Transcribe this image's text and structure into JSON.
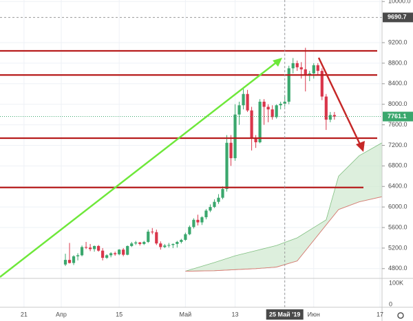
{
  "chart_data": {
    "type": "candlestick",
    "colors": {
      "up": "#3aa76d",
      "down": "#d9364b",
      "level": "#b71c1c",
      "cloud": "#cfe8cf"
    },
    "xlim": [
      -15.8,
      76.5
    ],
    "ylim": [
      4610,
      10030
    ],
    "grid": true,
    "xticks": [
      {
        "value": -10,
        "label": "21"
      },
      {
        "value": -1,
        "label": "Апр"
      },
      {
        "value": 13,
        "label": "15"
      },
      {
        "value": 29,
        "label": "Май"
      },
      {
        "value": 41,
        "label": "13"
      },
      {
        "value": 53,
        "label": "25 Май '19"
      },
      {
        "value": 60,
        "label": "Июн"
      },
      {
        "value": 76,
        "label": "17"
      }
    ],
    "yticks": [
      {
        "value": 4800,
        "label": "4800.0"
      },
      {
        "value": 5200,
        "label": "5200.0"
      },
      {
        "value": 5600,
        "label": "5600.0"
      },
      {
        "value": 6000,
        "label": "6000.0"
      },
      {
        "value": 6400,
        "label": "6400.0"
      },
      {
        "value": 6800,
        "label": "6800.0"
      },
      {
        "value": 7200,
        "label": "7200.0"
      },
      {
        "value": 7600,
        "label": "7600.0"
      },
      {
        "value": 8000,
        "label": "8000.0"
      },
      {
        "value": 8400,
        "label": "8400.0"
      },
      {
        "value": 8800,
        "label": "8800.0"
      },
      {
        "value": 9200,
        "label": "9200.0"
      },
      {
        "value": 10000,
        "label": "10000.0"
      }
    ],
    "ohlc": [
      [
        4880,
        5090,
        4850,
        4970
      ],
      [
        4970,
        5300,
        4900,
        4910
      ],
      [
        4910,
        5060,
        4870,
        5040
      ],
      [
        5040,
        5100,
        4960,
        5060
      ],
      [
        5060,
        5250,
        5040,
        5220
      ],
      [
        5220,
        5320,
        5180,
        5210
      ],
      [
        5210,
        5280,
        5140,
        5180
      ],
      [
        5180,
        5250,
        5130,
        5240
      ],
      [
        5240,
        5260,
        5130,
        5150
      ],
      [
        5150,
        5200,
        4960,
        5010
      ],
      [
        5010,
        5080,
        4990,
        5060
      ],
      [
        5060,
        5120,
        5020,
        5100
      ],
      [
        5100,
        5130,
        5050,
        5080
      ],
      [
        5080,
        5180,
        5060,
        5170
      ],
      [
        5170,
        5200,
        5040,
        5070
      ],
      [
        5070,
        5250,
        5060,
        5240
      ],
      [
        5240,
        5320,
        5220,
        5290
      ],
      [
        5290,
        5340,
        5260,
        5310
      ],
      [
        5310,
        5320,
        5250,
        5280
      ],
      [
        5280,
        5340,
        5260,
        5320
      ],
      [
        5320,
        5560,
        5300,
        5520
      ],
      [
        5520,
        5590,
        5470,
        5510
      ],
      [
        5510,
        5560,
        5260,
        5290
      ],
      [
        5290,
        5330,
        5170,
        5220
      ],
      [
        5220,
        5280,
        5200,
        5250
      ],
      [
        5250,
        5300,
        5210,
        5260
      ],
      [
        5260,
        5290,
        5200,
        5280
      ],
      [
        5280,
        5340,
        5210,
        5320
      ],
      [
        5320,
        5380,
        5290,
        5360
      ],
      [
        5360,
        5500,
        5340,
        5470
      ],
      [
        5470,
        5640,
        5450,
        5610
      ],
      [
        5610,
        5780,
        5580,
        5750
      ],
      [
        5750,
        5850,
        5640,
        5700
      ],
      [
        5700,
        5820,
        5650,
        5800
      ],
      [
        5800,
        5960,
        5760,
        5930
      ],
      [
        5930,
        6050,
        5900,
        6000
      ],
      [
        6000,
        6150,
        5980,
        6100
      ],
      [
        6100,
        6250,
        6060,
        6180
      ],
      [
        6180,
        6400,
        6150,
        6350
      ],
      [
        6350,
        7400,
        6300,
        7250
      ],
      [
        7250,
        7400,
        6800,
        6950
      ],
      [
        6950,
        8000,
        6900,
        7800
      ],
      [
        7800,
        8050,
        7600,
        7980
      ],
      [
        7980,
        8300,
        7900,
        8200
      ],
      [
        8200,
        8280,
        7850,
        7880
      ],
      [
        7880,
        7950,
        7100,
        7350
      ],
      [
        7350,
        7400,
        7150,
        7260
      ],
      [
        7260,
        8100,
        7240,
        8050
      ],
      [
        8050,
        8100,
        7600,
        7950
      ],
      [
        7950,
        8000,
        7650,
        7900
      ],
      [
        7900,
        7980,
        7700,
        7750
      ],
      [
        7750,
        8000,
        7720,
        7980
      ],
      [
        7980,
        8050,
        7900,
        8010
      ],
      [
        8010,
        8170,
        7950,
        8050
      ],
      [
        8050,
        8750,
        8000,
        8700
      ],
      [
        8700,
        8900,
        8600,
        8800
      ],
      [
        8800,
        8850,
        8650,
        8720
      ],
      [
        8720,
        8820,
        8500,
        8680
      ],
      [
        8680,
        9100,
        8250,
        8580
      ],
      [
        8580,
        8650,
        8450,
        8600
      ],
      [
        8600,
        8800,
        8500,
        8760
      ],
      [
        8760,
        8800,
        8580,
        8650
      ],
      [
        8650,
        8700,
        8080,
        8150
      ],
      [
        8150,
        8200,
        7500,
        7700
      ],
      [
        7700,
        7850,
        7650,
        7790
      ],
      [
        7790,
        7850,
        7700,
        7761.1
      ]
    ],
    "cloud": {
      "x": [
        29,
        36,
        41,
        46,
        51,
        56,
        61,
        63,
        66,
        71,
        76.5
      ],
      "upper": [
        4750,
        4920,
        5050,
        5150,
        5250,
        5400,
        5650,
        5750,
        6600,
        7000,
        7250
      ],
      "lower": [
        4750,
        4760,
        4780,
        4800,
        4830,
        4950,
        5450,
        5650,
        5950,
        6100,
        6200
      ]
    },
    "levels": [
      9040,
      8570,
      7340,
      6380
    ],
    "last_price": {
      "value": 7761.1,
      "label": "7761.1"
    },
    "crosshair_price": {
      "value": 9690.7,
      "label": "9690.7"
    },
    "volume_axis": [
      "100K",
      "0"
    ]
  }
}
